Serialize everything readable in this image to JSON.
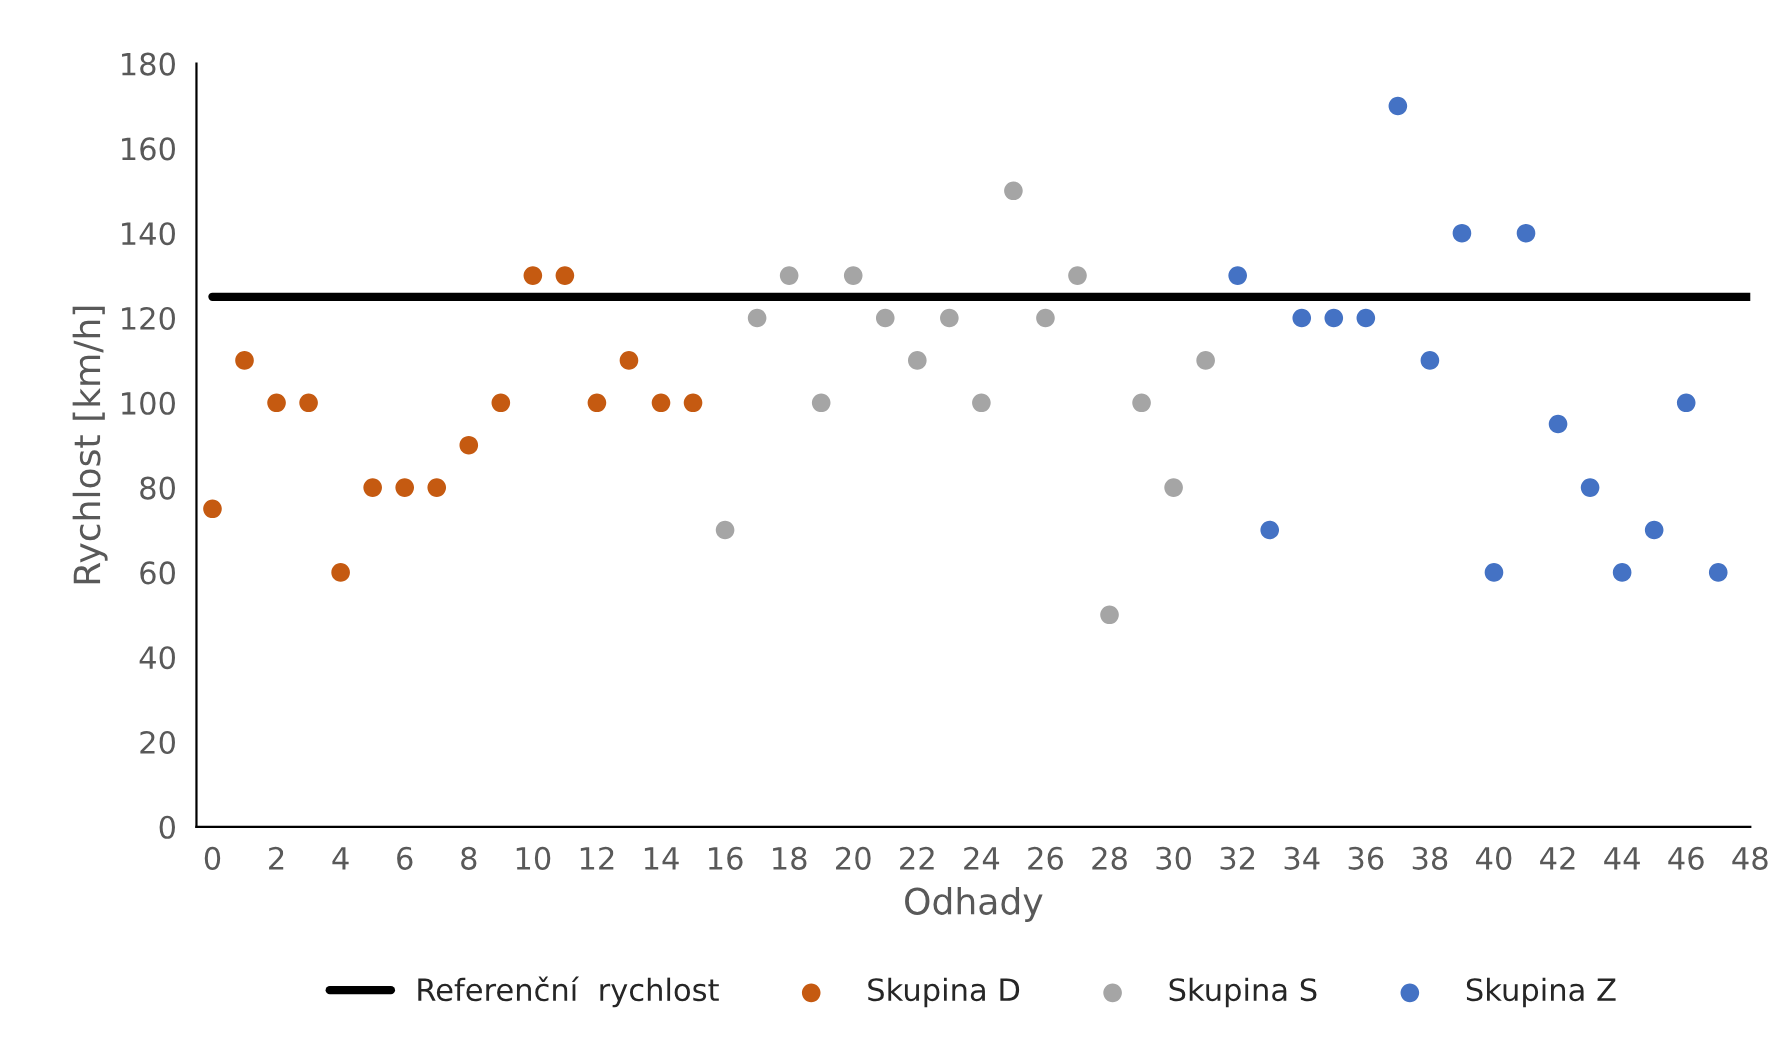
{
  "chart_data": {
    "type": "scatter",
    "xlabel": "Odhady",
    "ylabel": "Rychlost [km/h]",
    "xlim": [
      -0.5,
      48
    ],
    "xticks": [
      0,
      2,
      4,
      6,
      8,
      10,
      12,
      14,
      16,
      18,
      20,
      22,
      24,
      26,
      28,
      30,
      32,
      34,
      36,
      38,
      40,
      42,
      44,
      46,
      48
    ],
    "ylim": [
      0,
      180
    ],
    "yticks": [
      0,
      20,
      40,
      60,
      80,
      100,
      120,
      140,
      160,
      180
    ],
    "grid": false,
    "legend": "bottom",
    "series": [
      {
        "name": "Referenční  rychlost",
        "type": "line",
        "marker": "none",
        "color": "#000000",
        "x": [
          0,
          48
        ],
        "values": [
          125,
          125
        ]
      },
      {
        "name": "Skupina D",
        "marker": "circle",
        "color": "#c55a11",
        "x": [
          0,
          1,
          2,
          3,
          4,
          5,
          6,
          7,
          8,
          9,
          10,
          11,
          12,
          13,
          14,
          15
        ],
        "values": [
          75,
          110,
          100,
          100,
          60,
          80,
          80,
          80,
          90,
          100,
          130,
          130,
          100,
          110,
          100,
          100
        ]
      },
      {
        "name": "Skupina S",
        "marker": "circle",
        "color": "#a5a5a5",
        "x": [
          16,
          17,
          18,
          19,
          20,
          21,
          22,
          23,
          24,
          25,
          26,
          27,
          28,
          29,
          30,
          31
        ],
        "values": [
          70,
          120,
          130,
          100,
          130,
          120,
          110,
          120,
          100,
          150,
          120,
          130,
          50,
          100,
          80,
          110
        ]
      },
      {
        "name": "Skupina Z",
        "marker": "circle",
        "color": "#4472c4",
        "x": [
          32,
          33,
          34,
          35,
          36,
          37,
          38,
          39,
          40,
          41,
          42,
          43,
          44,
          45,
          46,
          47
        ],
        "values": [
          130,
          70,
          120,
          120,
          120,
          170,
          110,
          140,
          60,
          140,
          95,
          80,
          60,
          70,
          100,
          60
        ]
      }
    ]
  }
}
